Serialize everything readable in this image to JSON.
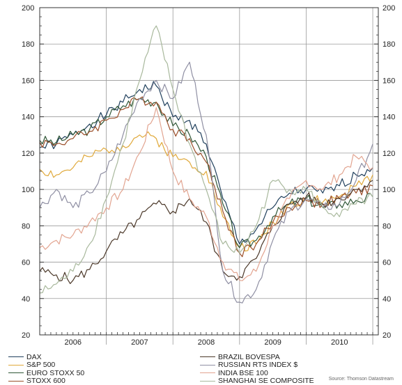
{
  "chart_data": {
    "type": "line",
    "title": "",
    "xlabel": "",
    "ylabel": "",
    "ylim": [
      20,
      200
    ],
    "yticks": [
      20,
      40,
      60,
      80,
      100,
      120,
      140,
      160,
      180,
      200
    ],
    "xlim": [
      "2006-01",
      "2011-02"
    ],
    "x_tick_labels": [
      "2006",
      "2007",
      "2008",
      "2009",
      "2010"
    ],
    "grid": true,
    "legend_position": "bottom",
    "x": [
      "2006-01",
      "2006-04",
      "2006-07",
      "2006-10",
      "2007-01",
      "2007-04",
      "2007-07",
      "2007-10",
      "2008-01",
      "2008-04",
      "2008-07",
      "2008-10",
      "2009-01",
      "2009-04",
      "2009-07",
      "2009-10",
      "2010-01",
      "2010-04",
      "2010-07",
      "2010-10",
      "2011-01"
    ],
    "series": [
      {
        "name": "DAX",
        "color": "#1f3f5c",
        "values": [
          123,
          125,
          130,
          136,
          141,
          148,
          155,
          157,
          140,
          138,
          125,
          95,
          70,
          78,
          90,
          98,
          100,
          98,
          102,
          108,
          112
        ]
      },
      {
        "name": "S&P 500",
        "color": "#e0a93a",
        "values": [
          111,
          108,
          112,
          118,
          122,
          124,
          130,
          128,
          118,
          115,
          110,
          85,
          68,
          70,
          82,
          92,
          95,
          93,
          96,
          102,
          108
        ]
      },
      {
        "name": "EURO STOXX 50",
        "color": "#2f5636",
        "values": [
          127,
          126,
          130,
          133,
          140,
          146,
          150,
          148,
          135,
          130,
          118,
          92,
          68,
          72,
          85,
          92,
          95,
          90,
          92,
          94,
          96
        ]
      },
      {
        "name": "STOXX 600",
        "color": "#9b4f2a",
        "values": [
          126,
          125,
          128,
          132,
          138,
          144,
          150,
          148,
          133,
          128,
          115,
          88,
          65,
          70,
          82,
          90,
          94,
          92,
          95,
          98,
          102
        ]
      },
      {
        "name": "BRAZIL BOVESPA",
        "color": "#4a3728",
        "values": [
          55,
          53,
          50,
          56,
          66,
          76,
          84,
          92,
          88,
          95,
          82,
          55,
          52,
          62,
          80,
          92,
          96,
          92,
          95,
          100,
          105
        ]
      },
      {
        "name": "RUSSIAN RTS INDEX $",
        "color": "#8f8fa3",
        "values": [
          90,
          100,
          90,
          98,
          110,
          130,
          150,
          160,
          150,
          170,
          130,
          55,
          38,
          45,
          72,
          88,
          95,
          90,
          92,
          105,
          125
        ]
      },
      {
        "name": "INDIA BSE 100",
        "color": "#e2a490",
        "values": [
          68,
          72,
          75,
          82,
          90,
          100,
          120,
          145,
          110,
          95,
          85,
          60,
          50,
          55,
          80,
          95,
          105,
          100,
          108,
          118,
          112
        ]
      },
      {
        "name": "SHANGHAI SE COMPOSITE",
        "color": "#a8b89c",
        "values": [
          43,
          48,
          55,
          70,
          95,
          125,
          160,
          190,
          155,
          125,
          100,
          70,
          65,
          80,
          105,
          100,
          100,
          90,
          85,
          92,
          96
        ]
      }
    ],
    "source": "Source: Thomson Datastream"
  }
}
